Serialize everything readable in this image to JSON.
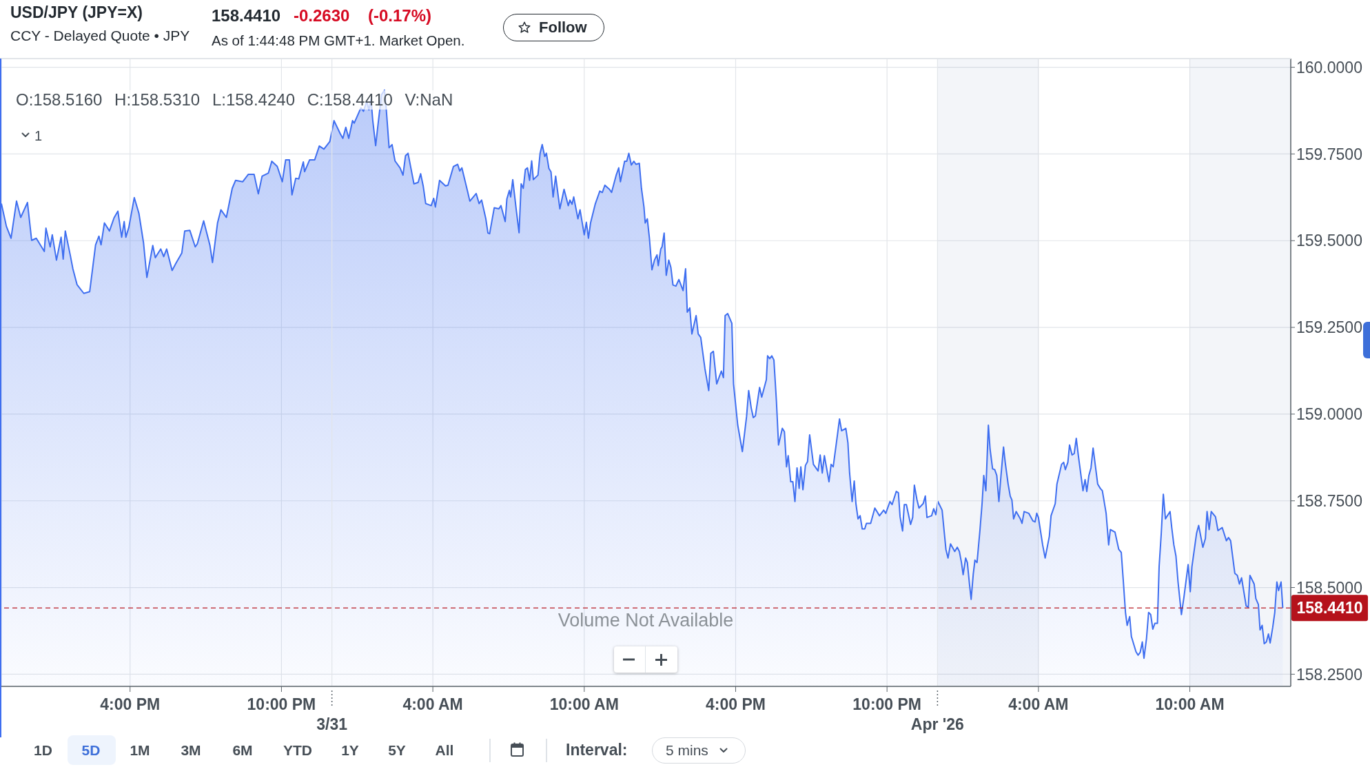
{
  "chart_data": {
    "type": "area",
    "title": "USD/JPY (JPY=X)",
    "subtitle": "CCY - Delayed Quote • JPY",
    "annotations": [
      "158.4410",
      "-0.2630",
      "(-0.17%)",
      "As of 1:44:48 PM GMT+1. Market Open.",
      "Follow",
      "O:158.5160 H:158.5310 L:158.4240 C:158.4410 V:NaN",
      "1",
      "Volume Not Available",
      "1D",
      "5D",
      "1M",
      "3M",
      "6M",
      "YTD",
      "1Y",
      "5Y",
      "All",
      "Interval:",
      "5 mins"
    ],
    "color": "#3e6ef0",
    "x": [
      "2026-03-30T10:54",
      "2026-03-30T11:06",
      "2026-03-30T11:17",
      "2026-03-30T11:30",
      "2026-03-30T11:40",
      "2026-03-30T11:56",
      "2026-03-30T12:06",
      "2026-03-30T12:17",
      "2026-03-30T12:36",
      "2026-03-30T12:40",
      "2026-03-30T12:50",
      "2026-03-30T12:55",
      "2026-03-30T13:05",
      "2026-03-30T13:16",
      "2026-03-30T13:21",
      "2026-03-30T13:26",
      "2026-03-30T13:38",
      "2026-03-30T13:44",
      "2026-03-30T13:54",
      "2026-03-30T14:10",
      "2026-03-30T14:24",
      "2026-03-30T14:38",
      "2026-03-30T14:46",
      "2026-03-30T14:51",
      "2026-03-30T14:59",
      "2026-03-30T15:11",
      "2026-03-30T15:22",
      "2026-03-30T15:31",
      "2026-03-30T15:40",
      "2026-03-30T15:46",
      "2026-03-30T15:50",
      "2026-03-30T15:57",
      "2026-03-30T16:10",
      "2026-03-30T16:21",
      "2026-03-30T16:32",
      "2026-03-30T16:40",
      "2026-03-30T16:54",
      "2026-03-30T17:00",
      "2026-03-30T17:13",
      "2026-03-30T17:20",
      "2026-03-30T17:27",
      "2026-03-30T17:40",
      "2026-03-30T17:50",
      "2026-03-30T18:03",
      "2026-03-30T18:10",
      "2026-03-30T18:22",
      "2026-03-30T18:35",
      "2026-03-30T18:40",
      "2026-03-30T18:55",
      "2026-03-30T19:10",
      "2026-03-30T19:16",
      "2026-03-30T19:28",
      "2026-03-30T19:36",
      "2026-03-30T19:49",
      "2026-03-30T20:03",
      "2026-03-30T20:11",
      "2026-03-30T20:28",
      "2026-03-30T20:41",
      "2026-03-30T20:55",
      "2026-03-30T21:05",
      "2026-03-30T21:14",
      "2026-03-30T21:29",
      "2026-03-30T21:37",
      "2026-03-30T21:50",
      "2026-03-30T22:02",
      "2026-03-30T22:10",
      "2026-03-30T22:19",
      "2026-03-30T22:25",
      "2026-03-30T22:34",
      "2026-03-30T22:41",
      "2026-03-30T22:52",
      "2026-03-30T22:55",
      "2026-03-30T23:07",
      "2026-03-30T23:19",
      "2026-03-30T23:30",
      "2026-03-30T23:41",
      "2026-03-30T23:55",
      "2026-03-31T00:05",
      "2026-03-31T00:20",
      "2026-03-31T00:26",
      "2026-03-31T00:33",
      "2026-03-31T00:40",
      "2026-03-31T00:49",
      "2026-03-31T00:53",
      "2026-03-31T01:09",
      "2026-03-31T01:15",
      "2026-03-31T01:23",
      "2026-03-31T01:28",
      "2026-03-31T01:33",
      "2026-03-31T01:37",
      "2026-03-31T01:44",
      "2026-03-31T01:50",
      "2026-03-31T01:58",
      "2026-03-31T02:05",
      "2026-03-31T02:09",
      "2026-03-31T02:16",
      "2026-03-31T02:23",
      "2026-03-31T02:30",
      "2026-03-31T02:42",
      "2026-03-31T02:49",
      "2026-03-31T02:55",
      "2026-03-31T03:01",
      "2026-03-31T03:15",
      "2026-03-31T03:25",
      "2026-03-31T03:31",
      "2026-03-31T03:37",
      "2026-03-31T03:43",
      "2026-03-31T03:56",
      "2026-03-31T04:02",
      "2026-03-31T04:06",
      "2026-03-31T04:16",
      "2026-03-31T04:30",
      "2026-03-31T04:36",
      "2026-03-31T04:49",
      "2026-03-31T04:59",
      "2026-03-31T05:04",
      "2026-03-31T05:09",
      "2026-03-31T05:22",
      "2026-03-31T05:28",
      "2026-03-31T05:43",
      "2026-03-31T05:50",
      "2026-03-31T05:56",
      "2026-03-31T06:06",
      "2026-03-31T06:11",
      "2026-03-31T06:15",
      "2026-03-31T06:26",
      "2026-03-31T06:37",
      "2026-03-31T06:42",
      "2026-03-31T06:52",
      "2026-03-31T06:56",
      "2026-03-31T07:02",
      "2026-03-31T07:05",
      "2026-03-31T07:10",
      "2026-03-31T07:19",
      "2026-03-31T07:25",
      "2026-03-31T07:30",
      "2026-03-31T07:35",
      "2026-03-31T07:40",
      "2026-03-31T07:45",
      "2026-03-31T07:50",
      "2026-03-31T07:55",
      "2026-03-31T07:59",
      "2026-03-31T08:10",
      "2026-03-31T08:15",
      "2026-03-31T08:20",
      "2026-03-31T08:26",
      "2026-03-31T08:30",
      "2026-03-31T08:36",
      "2026-03-31T08:41",
      "2026-03-31T08:46",
      "2026-03-31T08:52",
      "2026-03-31T09:02",
      "2026-03-31T09:12",
      "2026-03-31T09:22",
      "2026-03-31T09:26",
      "2026-03-31T09:31",
      "2026-03-31T09:35",
      "2026-03-31T09:45",
      "2026-03-31T09:50",
      "2026-03-31T10:00",
      "2026-03-31T10:05",
      "2026-03-31T10:10",
      "2026-03-31T10:15",
      "2026-03-31T10:26",
      "2026-03-31T10:37",
      "2026-03-31T10:43",
      "2026-03-31T10:49",
      "2026-03-31T11:00",
      "2026-03-31T11:05",
      "2026-03-31T11:16",
      "2026-03-31T11:22",
      "2026-03-31T11:26",
      "2026-03-31T11:36",
      "2026-03-31T11:41",
      "2026-03-31T11:46",
      "2026-03-31T11:52",
      "2026-03-31T11:58",
      "2026-03-31T12:03",
      "2026-03-31T12:11",
      "2026-03-31T12:16",
      "2026-03-31T12:22",
      "2026-03-31T12:25",
      "2026-03-31T12:30",
      "2026-03-31T12:35",
      "2026-03-31T12:41",
      "2026-03-31T12:47",
      "2026-03-31T12:53",
      "2026-03-31T12:56",
      "2026-03-31T13:02",
      "2026-03-31T13:05",
      "2026-03-31T13:10",
      "2026-03-31T13:15",
      "2026-03-31T13:21",
      "2026-03-31T13:26",
      "2026-03-31T13:31",
      "2026-03-31T13:38",
      "2026-03-31T13:45",
      "2026-03-31T13:55",
      "2026-03-31T14:01",
      "2026-03-31T14:05",
      "2026-03-31T14:11",
      "2026-03-31T14:16",
      "2026-03-31T14:26",
      "2026-03-31T14:31",
      "2026-03-31T14:37",
      "2026-03-31T14:47",
      "2026-03-31T14:56",
      "2026-03-31T15:01",
      "2026-03-31T15:07",
      "2026-03-31T15:15",
      "2026-03-31T15:26",
      "2026-03-31T15:31",
      "2026-03-31T15:35",
      "2026-03-31T15:41",
      "2026-03-31T15:51",
      "2026-03-31T15:55",
      "2026-03-31T16:05",
      "2026-03-31T16:16",
      "2026-03-31T16:26",
      "2026-03-31T16:31",
      "2026-03-31T16:37",
      "2026-03-31T16:42",
      "2026-03-31T16:47",
      "2026-03-31T16:57",
      "2026-03-31T17:02",
      "2026-03-31T17:13",
      "2026-03-31T17:16",
      "2026-03-31T17:21",
      "2026-03-31T17:26",
      "2026-03-31T17:31",
      "2026-03-31T17:37",
      "2026-03-31T17:42",
      "2026-03-31T17:51",
      "2026-03-31T17:56",
      "2026-03-31T18:01",
      "2026-03-31T18:05",
      "2026-03-31T18:11",
      "2026-03-31T18:16",
      "2026-03-31T18:21",
      "2026-03-31T18:26",
      "2026-03-31T18:31",
      "2026-03-31T18:35",
      "2026-03-31T18:40",
      "2026-03-31T18:46",
      "2026-03-31T18:51",
      "2026-03-31T18:56",
      "2026-03-31T19:05",
      "2026-03-31T19:16",
      "2026-03-31T19:21",
      "2026-03-31T19:26",
      "2026-03-31T19:31",
      "2026-03-31T19:42",
      "2026-03-31T19:47",
      "2026-03-31T19:52",
      "2026-03-31T20:01",
      "2026-03-31T20:07",
      "2026-03-31T20:12",
      "2026-03-31T20:22",
      "2026-03-31T20:27",
      "2026-03-31T20:31",
      "2026-03-31T20:37",
      "2026-03-31T20:42",
      "2026-03-31T20:46",
      "2026-03-31T20:51",
      "2026-03-31T20:56",
      "2026-03-31T21:01",
      "2026-03-31T21:07",
      "2026-03-31T21:11",
      "2026-03-31T21:21",
      "2026-03-31T21:31",
      "2026-03-31T21:42",
      "2026-03-31T21:52",
      "2026-03-31T21:57",
      "2026-03-31T22:07",
      "2026-03-31T22:12",
      "2026-03-31T22:22",
      "2026-03-31T22:27",
      "2026-03-31T22:31",
      "2026-03-31T22:37",
      "2026-03-31T22:41",
      "2026-03-31T22:46",
      "2026-03-31T22:56",
      "2026-03-31T23:01",
      "2026-03-31T23:05",
      "2026-03-31T23:11",
      "2026-03-31T23:16",
      "2026-03-31T23:26",
      "2026-03-31T23:31",
      "2026-03-31T23:35",
      "2026-03-31T23:46",
      "2026-03-31T23:51",
      "2026-03-31T23:56",
      "2026-04-01T00:01",
      "2026-04-01T00:11",
      "2026-04-01T00:16",
      "2026-04-01T00:20",
      "2026-04-01T00:25",
      "2026-04-01T00:31",
      "2026-04-01T00:41",
      "2026-04-01T00:47",
      "2026-04-01T00:52",
      "2026-04-01T00:57",
      "2026-04-01T01:01",
      "2026-04-01T01:07",
      "2026-04-01T01:11",
      "2026-04-01T01:16",
      "2026-04-01T01:20",
      "2026-04-01T01:25",
      "2026-04-01T01:29",
      "2026-04-01T01:34",
      "2026-04-01T01:41",
      "2026-04-01T01:46",
      "2026-04-01T01:50",
      "2026-04-01T01:55",
      "2026-04-01T02:01",
      "2026-04-01T02:05",
      "2026-04-01T02:11",
      "2026-04-01T02:16",
      "2026-04-01T02:21",
      "2026-04-01T02:26",
      "2026-04-01T02:31",
      "2026-04-01T02:37",
      "2026-04-01T02:41",
      "2026-04-01T02:48",
      "2026-04-01T02:53",
      "2026-04-01T02:57",
      "2026-04-01T03:01",
      "2026-04-01T03:07",
      "2026-04-01T03:17",
      "2026-04-01T03:21",
      "2026-04-01T03:26",
      "2026-04-01T03:37",
      "2026-04-01T03:47",
      "2026-04-01T03:52",
      "2026-04-01T03:56",
      "2026-04-01T04:00",
      "2026-04-01T04:10",
      "2026-04-01T04:16",
      "2026-04-01T04:26",
      "2026-04-01T04:30",
      "2026-04-01T04:40",
      "2026-04-01T04:44",
      "2026-04-01T04:55",
      "2026-04-01T05:00",
      "2026-04-01T05:04",
      "2026-04-01T05:10",
      "2026-04-01T05:14",
      "2026-04-01T05:20",
      "2026-04-01T05:25",
      "2026-04-01T05:30",
      "2026-04-01T05:35",
      "2026-04-01T05:46",
      "2026-04-01T05:51",
      "2026-04-01T05:55",
      "2026-04-01T06:00",
      "2026-04-01T06:05",
      "2026-04-01T06:10",
      "2026-04-01T06:21",
      "2026-04-01T06:27",
      "2026-04-01T06:32",
      "2026-04-01T06:41",
      "2026-04-01T06:47",
      "2026-04-01T06:51",
      "2026-04-01T07:02",
      "2026-04-01T07:11",
      "2026-04-01T07:17",
      "2026-04-01T07:22",
      "2026-04-01T07:27",
      "2026-04-01T07:31",
      "2026-04-01T07:37",
      "2026-04-01T07:41",
      "2026-04-01T07:52",
      "2026-04-01T07:57",
      "2026-04-01T08:02",
      "2026-04-01T08:07",
      "2026-04-01T08:11",
      "2026-04-01T08:17",
      "2026-04-01T08:22",
      "2026-04-01T08:27",
      "2026-04-01T08:32",
      "2026-04-01T08:37",
      "2026-04-01T08:43",
      "2026-04-01T08:47",
      "2026-04-01T08:52",
      "2026-04-01T08:57",
      "2026-04-01T09:02",
      "2026-04-01T09:13",
      "2026-04-01T09:17",
      "2026-04-01T09:22",
      "2026-04-01T09:27",
      "2026-04-01T09:32",
      "2026-04-01T09:40",
      "2026-04-01T09:46",
      "2026-04-01T09:56",
      "2026-04-01T10:01",
      "2026-04-01T10:05",
      "2026-04-01T10:16",
      "2026-04-01T10:21",
      "2026-04-01T10:31",
      "2026-04-01T10:37",
      "2026-04-01T10:41",
      "2026-04-01T10:46",
      "2026-04-01T10:51",
      "2026-04-01T11:01",
      "2026-04-01T11:07",
      "2026-04-01T11:17",
      "2026-04-01T11:27",
      "2026-04-01T11:32",
      "2026-04-01T11:37",
      "2026-04-01T11:47",
      "2026-04-01T11:53",
      "2026-04-01T11:58",
      "2026-04-01T12:03",
      "2026-04-01T12:14",
      "2026-04-01T12:19",
      "2026-04-01T12:23",
      "2026-04-01T12:33",
      "2026-04-01T12:37",
      "2026-04-01T12:43",
      "2026-04-01T12:47",
      "2026-04-01T12:52",
      "2026-04-01T12:57",
      "2026-04-01T13:02",
      "2026-04-01T13:07",
      "2026-04-01T13:11",
      "2026-04-01T13:17",
      "2026-04-01T13:22",
      "2026-04-01T13:27",
      "2026-04-01T13:31",
      "2026-04-01T13:37",
      "2026-04-01T13:41"
    ],
    "values": [
      159.607,
      159.541,
      159.507,
      159.614,
      159.567,
      159.61,
      159.501,
      159.507,
      159.469,
      159.536,
      159.482,
      159.517,
      159.444,
      159.51,
      159.447,
      159.528,
      159.457,
      159.419,
      159.373,
      159.348,
      159.353,
      159.488,
      159.513,
      159.488,
      159.551,
      159.528,
      159.566,
      159.585,
      159.51,
      159.555,
      159.51,
      159.538,
      159.624,
      159.579,
      159.494,
      159.394,
      159.486,
      159.451,
      159.476,
      159.454,
      159.476,
      159.414,
      159.437,
      159.464,
      159.528,
      159.53,
      159.482,
      159.491,
      159.557,
      159.486,
      159.437,
      159.551,
      159.589,
      159.567,
      159.651,
      159.674,
      159.67,
      159.691,
      159.691,
      159.635,
      159.686,
      159.695,
      159.729,
      159.714,
      159.67,
      159.733,
      159.733,
      159.632,
      159.68,
      159.678,
      159.727,
      159.699,
      159.733,
      159.733,
      159.773,
      159.764,
      159.786,
      159.846,
      159.808,
      159.795,
      159.827,
      159.795,
      159.846,
      159.839,
      159.883,
      159.873,
      159.902,
      159.877,
      159.908,
      159.848,
      159.774,
      159.839,
      159.921,
      159.934,
      159.883,
      159.768,
      159.777,
      159.73,
      159.71,
      159.689,
      159.745,
      159.752,
      159.664,
      159.668,
      159.693,
      159.658,
      159.607,
      159.601,
      159.622,
      159.597,
      159.674,
      159.658,
      159.66,
      159.714,
      159.72,
      159.701,
      159.71,
      159.645,
      159.614,
      159.636,
      159.607,
      159.617,
      159.563,
      159.522,
      159.52,
      159.595,
      159.592,
      159.601,
      159.555,
      159.62,
      159.645,
      159.626,
      159.676,
      159.582,
      159.523,
      159.664,
      159.651,
      159.705,
      159.71,
      159.674,
      159.73,
      159.676,
      159.689,
      159.752,
      159.777,
      159.743,
      159.752,
      159.708,
      159.698,
      159.626,
      159.686,
      159.592,
      159.648,
      159.601,
      159.617,
      159.605,
      159.626,
      159.563,
      159.589,
      159.517,
      159.553,
      159.507,
      159.551,
      159.605,
      159.643,
      159.639,
      159.66,
      159.648,
      159.639,
      159.689,
      159.71,
      159.67,
      159.729,
      159.729,
      159.752,
      159.718,
      159.729,
      159.72,
      159.723,
      159.651,
      159.597,
      159.551,
      159.563,
      159.507,
      159.416,
      159.444,
      159.459,
      159.428,
      159.476,
      159.482,
      159.522,
      159.4,
      159.444,
      159.423,
      159.372,
      159.369,
      159.388,
      159.356,
      159.419,
      159.294,
      159.306,
      159.231,
      159.284,
      159.231,
      159.221,
      159.131,
      159.068,
      159.175,
      159.181,
      159.087,
      159.124,
      159.105,
      159.284,
      159.29,
      159.262,
      159.087,
      158.968,
      158.892,
      158.993,
      159.068,
      159.018,
      158.99,
      158.995,
      159.077,
      159.049,
      159.099,
      159.168,
      159.16,
      159.168,
      159.156,
      159.037,
      158.911,
      158.959,
      158.949,
      158.848,
      158.88,
      158.805,
      158.805,
      158.748,
      158.845,
      158.786,
      158.848,
      158.782,
      158.852,
      158.863,
      158.94,
      158.855,
      158.836,
      158.882,
      158.83,
      158.88,
      158.805,
      158.855,
      158.848,
      158.93,
      158.986,
      158.952,
      158.959,
      158.917,
      158.83,
      158.748,
      158.807,
      158.742,
      158.698,
      158.707,
      158.669,
      158.669,
      158.685,
      158.685,
      158.729,
      158.707,
      158.723,
      158.714,
      158.748,
      158.739,
      158.777,
      158.773,
      158.704,
      158.663,
      158.739,
      158.739,
      158.682,
      158.702,
      158.795,
      158.754,
      158.729,
      158.742,
      158.764,
      158.702,
      158.707,
      158.727,
      158.71,
      158.748,
      158.723,
      158.66,
      158.61,
      158.585,
      158.626,
      158.604,
      158.616,
      158.604,
      158.572,
      158.537,
      158.585,
      158.572,
      158.51,
      158.466,
      158.538,
      158.579,
      158.572,
      158.666,
      158.742,
      158.823,
      158.779,
      158.968,
      158.899,
      158.842,
      158.84,
      158.823,
      158.748,
      158.823,
      158.905,
      158.861,
      158.798,
      158.763,
      158.752,
      158.698,
      158.719,
      158.698,
      158.685,
      158.719,
      158.714,
      158.692,
      158.689,
      158.714,
      158.702,
      158.623,
      158.585,
      158.648,
      158.707,
      158.742,
      158.798,
      158.855,
      158.861,
      158.84,
      158.861,
      158.911,
      158.882,
      158.886,
      158.93,
      158.88,
      158.779,
      158.811,
      158.777,
      158.823,
      158.845,
      158.902,
      158.798,
      158.786,
      158.779,
      158.714,
      158.623,
      158.667,
      158.66,
      158.61,
      158.601,
      158.516,
      158.428,
      158.391,
      158.416,
      158.359,
      158.315,
      158.305,
      158.313,
      158.343,
      158.296,
      158.353,
      158.428,
      158.422,
      158.38,
      158.397,
      158.397,
      158.56,
      158.654,
      158.769,
      158.698,
      158.719,
      158.673,
      158.623,
      158.591,
      158.516,
      158.422,
      158.472,
      158.566,
      158.488,
      158.56,
      158.656,
      158.679,
      158.616,
      158.641,
      158.719,
      158.667,
      158.719,
      158.704,
      158.664,
      158.673,
      158.635,
      158.644,
      158.635,
      158.541,
      158.535,
      158.51,
      158.528,
      158.447,
      158.443,
      158.535,
      158.51,
      158.468,
      158.451,
      158.378,
      158.391,
      158.338,
      158.343,
      158.366,
      158.34,
      158.384,
      158.428,
      158.516,
      158.491,
      158.516,
      158.441
    ],
    "xlim": [
      "2026-03-30T10:54",
      "2026-04-01T14:00"
    ],
    "xticks": [
      {
        "value": "2026-03-30T16:00",
        "label": "4:00 PM"
      },
      {
        "value": "2026-03-30T22:00",
        "label": "10:00 PM"
      },
      {
        "value": "2026-03-31T04:00",
        "label": "4:00 AM"
      },
      {
        "value": "2026-03-31T10:00",
        "label": "10:00 AM"
      },
      {
        "value": "2026-03-31T16:00",
        "label": "4:00 PM"
      },
      {
        "value": "2026-03-31T22:00",
        "label": "10:00 PM"
      },
      {
        "value": "2026-04-01T04:00",
        "label": "4:00 AM"
      },
      {
        "value": "2026-04-01T10:00",
        "label": "10:00 AM"
      }
    ],
    "ylim": [
      158.215,
      160.025
    ],
    "yticks": [
      {
        "value": 158.25,
        "label": "158.2500"
      },
      {
        "value": 158.5,
        "label": "158.5000"
      },
      {
        "value": 158.75,
        "label": "158.7500"
      },
      {
        "value": 159,
        "label": "159.0000"
      },
      {
        "value": 159.25,
        "label": "159.2500"
      },
      {
        "value": 159.5,
        "label": "159.5000"
      },
      {
        "value": 159.75,
        "label": "159.7500"
      },
      {
        "value": 160,
        "label": "160.0000"
      }
    ],
    "grid": true,
    "ref_lines": [
      {
        "axis": "y",
        "value": 158.441,
        "label": "158.4410",
        "color": "#b5121b",
        "line_style": "dashed"
      },
      {
        "axis": "x",
        "value": "2026-03-31",
        "label": "3/31"
      },
      {
        "axis": "x",
        "value": "2026-04-01",
        "label": "Apr '26"
      }
    ],
    "bands": [
      {
        "axis": "x",
        "from": "2026-04-01",
        "to": "2026-04-01T04:00",
        "color": "#f3f5f9"
      },
      {
        "axis": "x",
        "from": "2026-04-01T10:00",
        "to": "2026-04-01T14:00",
        "color": "#f3f5f9"
      }
    ]
  }
}
